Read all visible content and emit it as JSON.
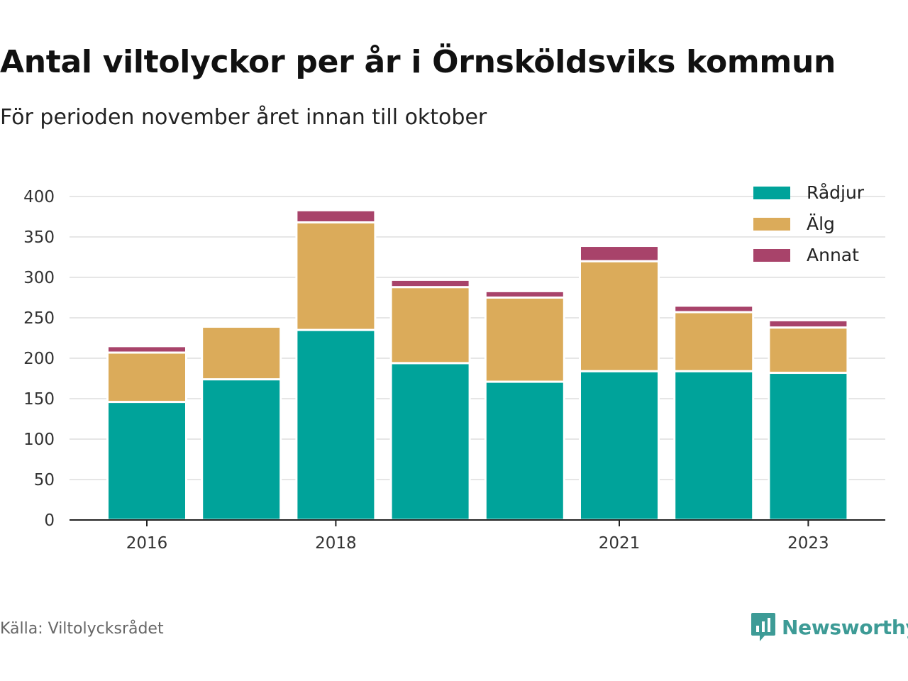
{
  "title": "Antal viltolyckor per år i Örnsköldsviks kommun",
  "subtitle": "För perioden november året innan till oktober",
  "source": "Källa: Viltolycksrådet",
  "brand": {
    "name": "Newsworthy",
    "icon": "newsworthy-logo-icon",
    "color": "#3d9b96"
  },
  "chart_data": {
    "type": "bar",
    "stacked": true,
    "categories": [
      "2016",
      "2017",
      "2018",
      "2019",
      "2020",
      "2021",
      "2022",
      "2023"
    ],
    "x_tick_labels": [
      "2016",
      "",
      "2018",
      "",
      "",
      "2021",
      "",
      "2023"
    ],
    "series": [
      {
        "name": "Rådjur",
        "color": "#00a39a",
        "values": [
          146,
          174,
          235,
          194,
          171,
          184,
          184,
          182
        ]
      },
      {
        "name": "Älg",
        "color": "#dbab5a",
        "values": [
          61,
          65,
          133,
          94,
          104,
          136,
          73,
          56
        ]
      },
      {
        "name": "Annat",
        "color": "#a8436a",
        "values": [
          8,
          0,
          15,
          9,
          8,
          19,
          8,
          9
        ]
      }
    ],
    "y_ticks": [
      0,
      50,
      100,
      150,
      200,
      250,
      300,
      350,
      400
    ],
    "ylim": [
      0,
      400
    ],
    "xlabel": "",
    "ylabel": "",
    "grid": true,
    "legend_position": "top-right"
  }
}
